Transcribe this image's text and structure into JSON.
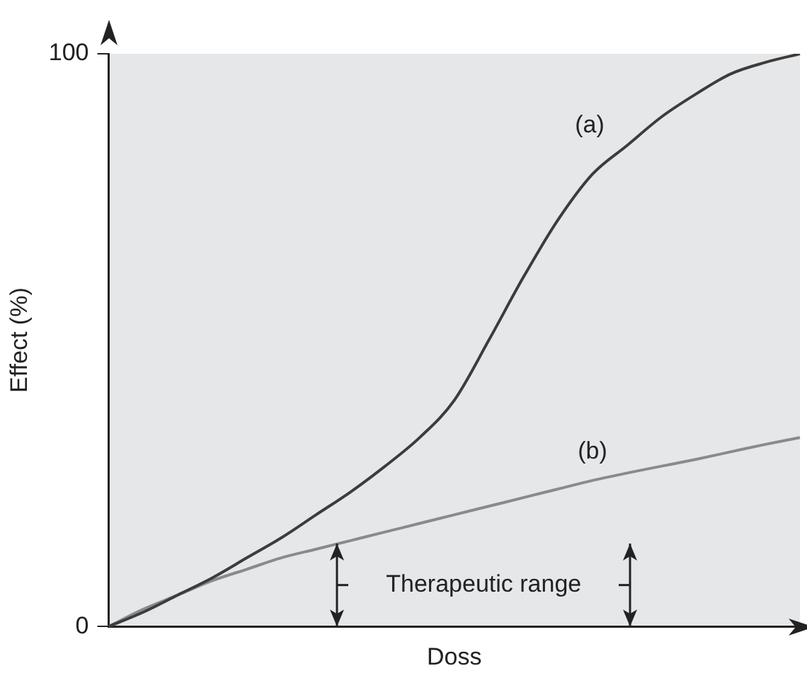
{
  "chart_data": {
    "type": "line",
    "xlabel": "Doss",
    "ylabel": "Effect (%)",
    "categories": [
      null,
      null,
      null,
      null,
      null,
      null,
      null,
      null,
      null,
      null,
      null,
      null,
      null,
      null,
      null,
      null,
      null,
      null,
      null,
      null,
      null
    ],
    "series": [
      {
        "name": "(a)",
        "color": "#3c3c3c",
        "values": [
          0,
          2.5,
          5.5,
          8.5,
          12,
          15.5,
          19.5,
          23.5,
          28,
          33,
          39.5,
          50,
          61,
          71,
          79,
          84,
          89,
          93,
          96.5,
          98.5,
          100
        ]
      },
      {
        "name": "(b)",
        "color": "#8a8a8a",
        "values": [
          0,
          3,
          5.5,
          8,
          10,
          12,
          13.5,
          15,
          16.5,
          18,
          19.5,
          21,
          22.5,
          24,
          25.5,
          26.8,
          28,
          29.2,
          30.5,
          31.8,
          33
        ]
      }
    ],
    "ylim": [
      0,
      100
    ],
    "yticks": [
      0,
      100
    ],
    "tick_labels": "y",
    "legend": false,
    "marker": "none",
    "line_style": "solid",
    "annotations": [
      "Therapeutic range"
    ]
  }
}
